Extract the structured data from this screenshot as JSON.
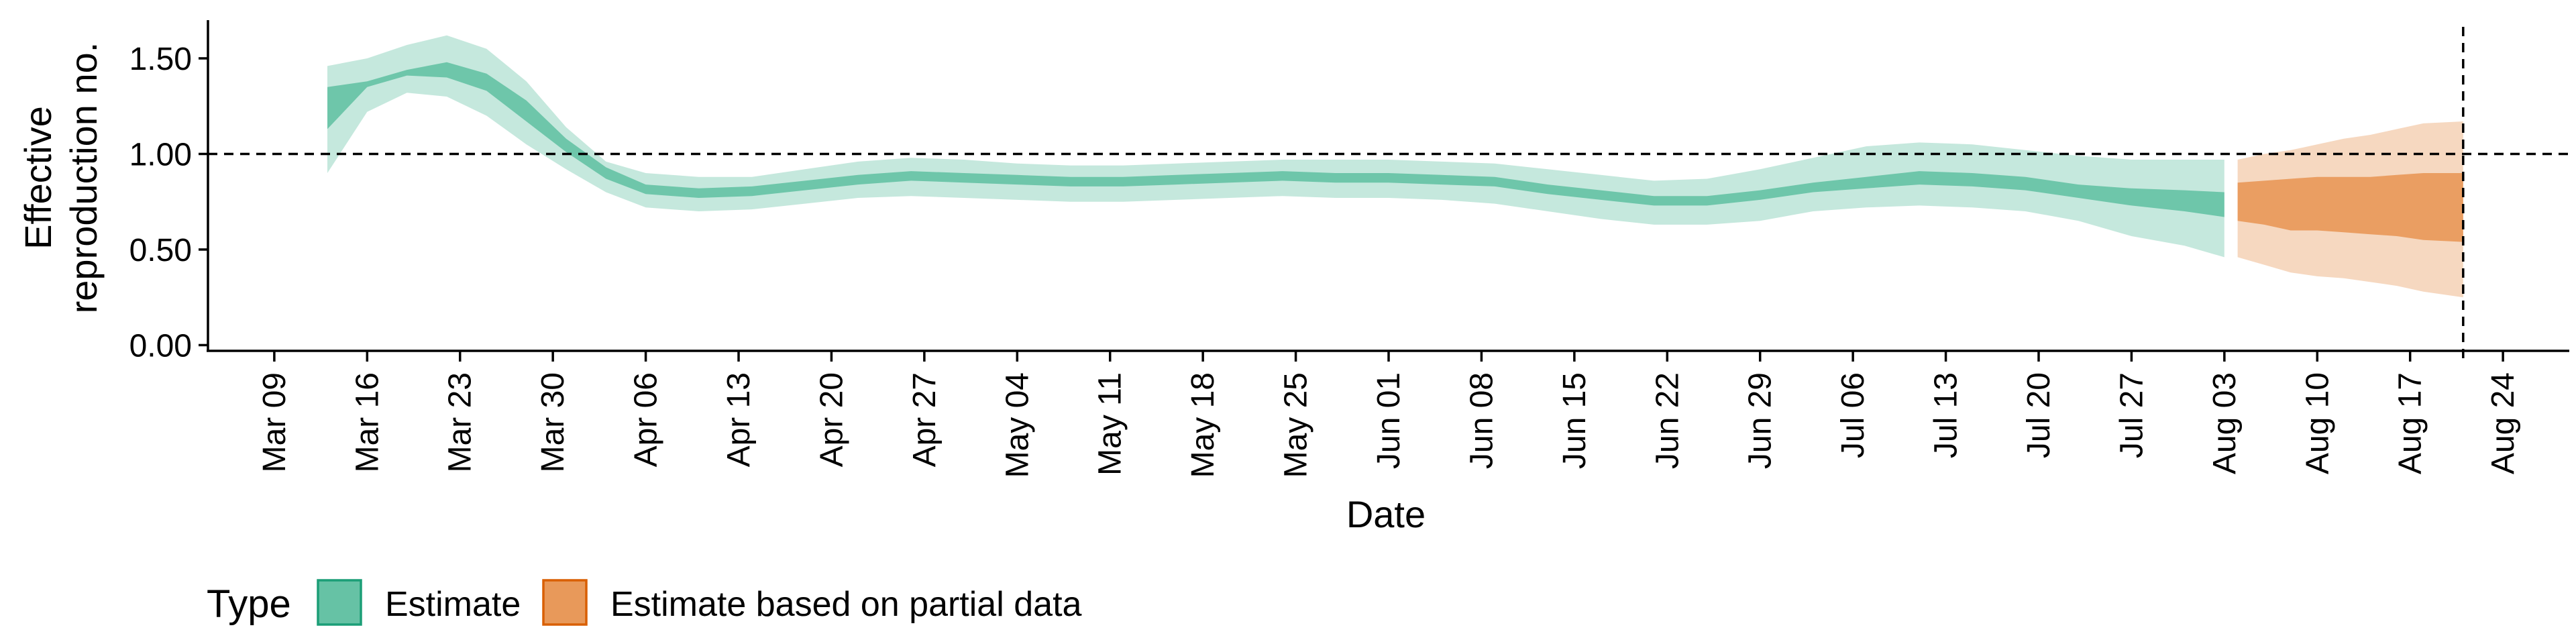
{
  "chart_data": {
    "type": "area",
    "title": "",
    "xlabel": "Date",
    "ylabel_lines": [
      "Effective",
      "reproduction no."
    ],
    "x_axis_type": "date",
    "xlim": [
      "2020-03-04",
      "2020-08-29"
    ],
    "ylim": [
      -0.03,
      1.7
    ],
    "x_ticks": [
      {
        "date": "2020-03-09",
        "label": "Mar 09"
      },
      {
        "date": "2020-03-16",
        "label": "Mar 16"
      },
      {
        "date": "2020-03-23",
        "label": "Mar 23"
      },
      {
        "date": "2020-03-30",
        "label": "Mar 30"
      },
      {
        "date": "2020-04-06",
        "label": "Apr 06"
      },
      {
        "date": "2020-04-13",
        "label": "Apr 13"
      },
      {
        "date": "2020-04-20",
        "label": "Apr 20"
      },
      {
        "date": "2020-04-27",
        "label": "Apr 27"
      },
      {
        "date": "2020-05-04",
        "label": "May 04"
      },
      {
        "date": "2020-05-11",
        "label": "May 11"
      },
      {
        "date": "2020-05-18",
        "label": "May 18"
      },
      {
        "date": "2020-05-25",
        "label": "May 25"
      },
      {
        "date": "2020-06-01",
        "label": "Jun 01"
      },
      {
        "date": "2020-06-08",
        "label": "Jun 08"
      },
      {
        "date": "2020-06-15",
        "label": "Jun 15"
      },
      {
        "date": "2020-06-22",
        "label": "Jun 22"
      },
      {
        "date": "2020-06-29",
        "label": "Jun 29"
      },
      {
        "date": "2020-07-06",
        "label": "Jul 06"
      },
      {
        "date": "2020-07-13",
        "label": "Jul 13"
      },
      {
        "date": "2020-07-20",
        "label": "Jul 20"
      },
      {
        "date": "2020-07-27",
        "label": "Jul 27"
      },
      {
        "date": "2020-08-03",
        "label": "Aug 03"
      },
      {
        "date": "2020-08-10",
        "label": "Aug 10"
      },
      {
        "date": "2020-08-17",
        "label": "Aug 17"
      },
      {
        "date": "2020-08-24",
        "label": "Aug 24"
      }
    ],
    "y_ticks": [
      {
        "value": 0.0,
        "label": "0.00"
      },
      {
        "value": 0.5,
        "label": "0.50"
      },
      {
        "value": 1.0,
        "label": "1.00"
      },
      {
        "value": 1.5,
        "label": "1.50"
      }
    ],
    "reference_line_y": 1.0,
    "reference_line_x": "2020-08-21",
    "grid": false,
    "legend": {
      "placement": "bottom-left",
      "title": "Type",
      "entries": [
        {
          "label": "Estimate",
          "fill": "#66c2a5",
          "border": "#1b9e77"
        },
        {
          "label": "Estimate based on partial data",
          "fill": "#e8995a",
          "border": "#d95f02"
        }
      ]
    },
    "series": [
      {
        "name": "Estimate",
        "color": "#66c2a5",
        "x": [
          "2020-03-13",
          "2020-03-16",
          "2020-03-19",
          "2020-03-22",
          "2020-03-25",
          "2020-03-28",
          "2020-03-31",
          "2020-04-03",
          "2020-04-06",
          "2020-04-10",
          "2020-04-14",
          "2020-04-18",
          "2020-04-22",
          "2020-04-26",
          "2020-04-30",
          "2020-05-04",
          "2020-05-08",
          "2020-05-12",
          "2020-05-16",
          "2020-05-20",
          "2020-05-24",
          "2020-05-28",
          "2020-06-01",
          "2020-06-05",
          "2020-06-09",
          "2020-06-13",
          "2020-06-17",
          "2020-06-21",
          "2020-06-25",
          "2020-06-29",
          "2020-07-03",
          "2020-07-07",
          "2020-07-11",
          "2020-07-15",
          "2020-07-19",
          "2020-07-23",
          "2020-07-27",
          "2020-07-31",
          "2020-08-03"
        ],
        "lower_90": [
          0.9,
          1.22,
          1.32,
          1.3,
          1.2,
          1.05,
          0.92,
          0.8,
          0.72,
          0.7,
          0.71,
          0.74,
          0.77,
          0.78,
          0.77,
          0.76,
          0.75,
          0.75,
          0.76,
          0.77,
          0.78,
          0.77,
          0.77,
          0.76,
          0.74,
          0.7,
          0.66,
          0.63,
          0.63,
          0.65,
          0.7,
          0.72,
          0.73,
          0.72,
          0.7,
          0.65,
          0.57,
          0.52,
          0.46
        ],
        "upper_90": [
          1.46,
          1.5,
          1.57,
          1.62,
          1.55,
          1.38,
          1.14,
          0.96,
          0.9,
          0.88,
          0.88,
          0.92,
          0.96,
          0.98,
          0.97,
          0.95,
          0.94,
          0.94,
          0.95,
          0.96,
          0.97,
          0.97,
          0.97,
          0.96,
          0.95,
          0.92,
          0.89,
          0.86,
          0.87,
          0.92,
          0.98,
          1.04,
          1.06,
          1.05,
          1.02,
          0.99,
          0.97,
          0.97,
          0.97
        ],
        "lower_50": [
          1.13,
          1.35,
          1.41,
          1.4,
          1.33,
          1.17,
          1.01,
          0.87,
          0.79,
          0.77,
          0.78,
          0.81,
          0.84,
          0.86,
          0.85,
          0.84,
          0.83,
          0.83,
          0.84,
          0.85,
          0.86,
          0.85,
          0.85,
          0.84,
          0.83,
          0.79,
          0.76,
          0.73,
          0.73,
          0.76,
          0.8,
          0.82,
          0.84,
          0.83,
          0.81,
          0.77,
          0.73,
          0.7,
          0.67
        ],
        "upper_50": [
          1.35,
          1.38,
          1.44,
          1.48,
          1.42,
          1.28,
          1.08,
          0.93,
          0.84,
          0.82,
          0.83,
          0.86,
          0.89,
          0.91,
          0.9,
          0.89,
          0.88,
          0.88,
          0.89,
          0.9,
          0.91,
          0.9,
          0.9,
          0.89,
          0.88,
          0.84,
          0.81,
          0.78,
          0.78,
          0.81,
          0.85,
          0.88,
          0.91,
          0.9,
          0.88,
          0.84,
          0.82,
          0.81,
          0.8
        ]
      },
      {
        "name": "Estimate based on partial data",
        "color": "#e8995a",
        "x": [
          "2020-08-04",
          "2020-08-06",
          "2020-08-08",
          "2020-08-10",
          "2020-08-12",
          "2020-08-14",
          "2020-08-16",
          "2020-08-18",
          "2020-08-21"
        ],
        "lower_90": [
          0.46,
          0.42,
          0.38,
          0.36,
          0.35,
          0.33,
          0.31,
          0.28,
          0.25
        ],
        "upper_90": [
          0.97,
          1.0,
          1.02,
          1.05,
          1.08,
          1.1,
          1.13,
          1.16,
          1.17
        ],
        "lower_50": [
          0.65,
          0.63,
          0.6,
          0.6,
          0.59,
          0.58,
          0.57,
          0.55,
          0.54
        ],
        "upper_50": [
          0.85,
          0.86,
          0.87,
          0.88,
          0.88,
          0.88,
          0.89,
          0.9,
          0.9
        ]
      }
    ]
  }
}
